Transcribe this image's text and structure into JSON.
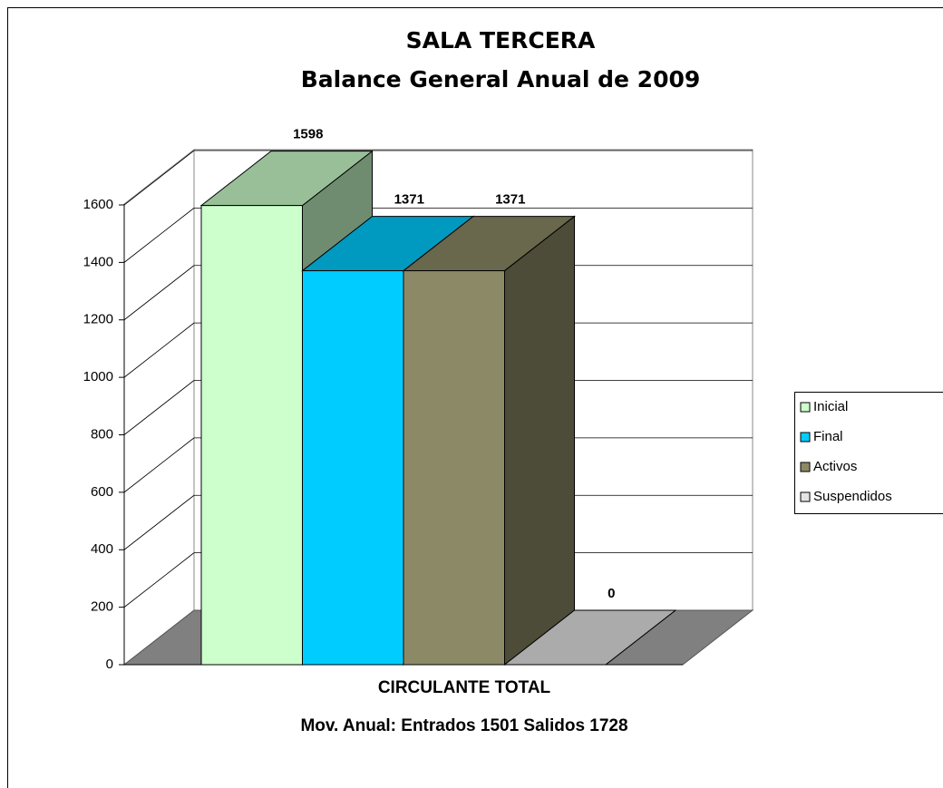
{
  "chart_data": {
    "type": "bar3d",
    "title": [
      "SALA TERCERA",
      "Balance General Anual  de 2009"
    ],
    "x_label": [
      "CIRCULANTE TOTAL",
      "Mov. Anual: Entrados 1501  Salidos 1728"
    ],
    "categories": [
      null
    ],
    "series": [
      {
        "name": "Inicial",
        "color": "#ccffcc",
        "values": [
          1598
        ]
      },
      {
        "name": "Final",
        "color": "#00ccff",
        "values": [
          1371
        ]
      },
      {
        "name": "Activos",
        "color": "#8c8a66",
        "values": [
          1371
        ]
      },
      {
        "name": "Suspendidos",
        "color": "#e4e4e4",
        "values": [
          0
        ]
      }
    ],
    "ylim": [
      0,
      1600
    ],
    "yticks": [
      0,
      200,
      400,
      600,
      800,
      1000,
      1200,
      1400,
      1600
    ],
    "grid": true,
    "legend": "right"
  }
}
